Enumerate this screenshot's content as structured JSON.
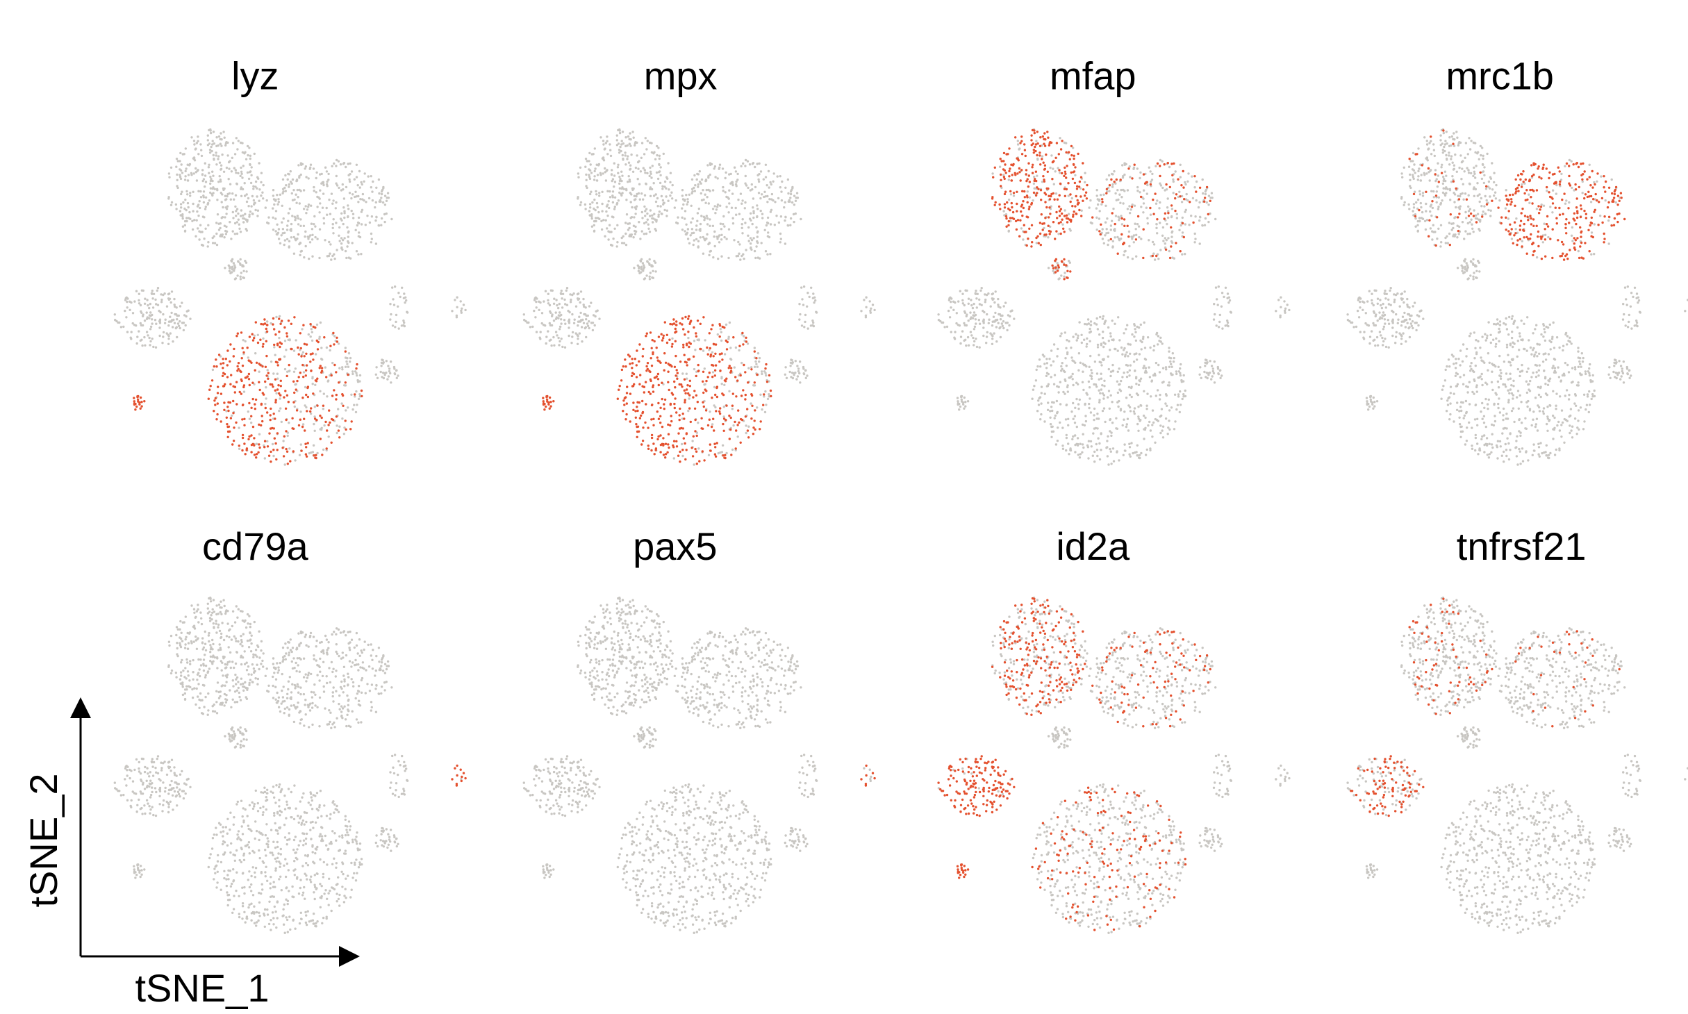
{
  "panels": [
    {
      "title": "lyz"
    },
    {
      "title": "mpx"
    },
    {
      "title": "mfap"
    },
    {
      "title": "mrc1b"
    },
    {
      "title": "cd79a"
    },
    {
      "title": "pax5"
    },
    {
      "title": "id2a"
    },
    {
      "title": "tnfrsf21"
    }
  ],
  "axes": {
    "x_label": "tSNE_1",
    "y_label": "tSNE_2"
  }
}
